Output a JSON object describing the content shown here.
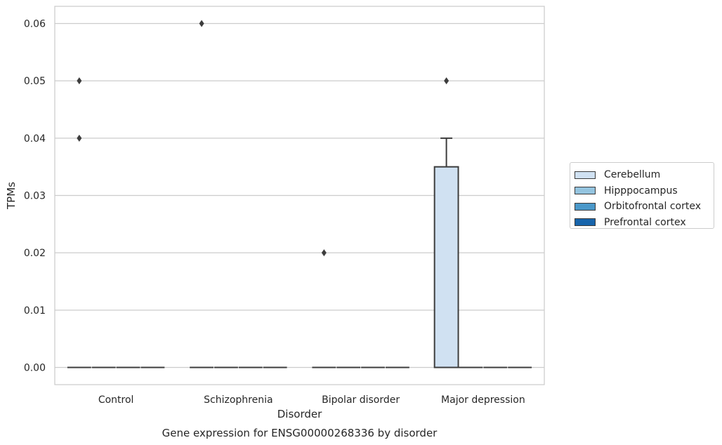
{
  "chart_data": {
    "type": "box",
    "xlabel": "Disorder",
    "ylabel": "TPMs",
    "caption": "Gene expression for ENSG00000268336 by disorder",
    "categories": [
      "Control",
      "Schizophrenia",
      "Bipolar disorder",
      "Major depression"
    ],
    "ylim": [
      -0.003,
      0.063
    ],
    "yticks": [
      "0.00",
      "0.01",
      "0.02",
      "0.03",
      "0.04",
      "0.05",
      "0.06"
    ],
    "grid": true,
    "legend_position": "right",
    "series": [
      {
        "name": "Cerebellum",
        "color": "#d0e1f2",
        "boxes": [
          {
            "q1": 0,
            "median": 0,
            "q3": 0,
            "whisker_low": 0,
            "whisker_high": 0,
            "outliers": [
              0.04,
              0.05
            ]
          },
          {
            "q1": 0,
            "median": 0,
            "q3": 0,
            "whisker_low": 0,
            "whisker_high": 0,
            "outliers": [
              0.06
            ]
          },
          {
            "q1": 0,
            "median": 0,
            "q3": 0,
            "whisker_low": 0,
            "whisker_high": 0,
            "outliers": [
              0.02
            ]
          },
          {
            "q1": 0,
            "median": 0,
            "q3": 0.035,
            "whisker_low": 0,
            "whisker_high": 0.04,
            "outliers": [
              0.05
            ]
          }
        ]
      },
      {
        "name": "Hipppocampus",
        "color": "#94c4df",
        "boxes": [
          {
            "q1": 0,
            "median": 0,
            "q3": 0,
            "whisker_low": 0,
            "whisker_high": 0,
            "outliers": []
          },
          {
            "q1": 0,
            "median": 0,
            "q3": 0,
            "whisker_low": 0,
            "whisker_high": 0,
            "outliers": []
          },
          {
            "q1": 0,
            "median": 0,
            "q3": 0,
            "whisker_low": 0,
            "whisker_high": 0,
            "outliers": []
          },
          {
            "q1": 0,
            "median": 0,
            "q3": 0,
            "whisker_low": 0,
            "whisker_high": 0,
            "outliers": []
          }
        ]
      },
      {
        "name": "Orbitofrontal cortex",
        "color": "#4a98c9",
        "boxes": [
          {
            "q1": 0,
            "median": 0,
            "q3": 0,
            "whisker_low": 0,
            "whisker_high": 0,
            "outliers": []
          },
          {
            "q1": 0,
            "median": 0,
            "q3": 0,
            "whisker_low": 0,
            "whisker_high": 0,
            "outliers": []
          },
          {
            "q1": 0,
            "median": 0,
            "q3": 0,
            "whisker_low": 0,
            "whisker_high": 0,
            "outliers": []
          },
          {
            "q1": 0,
            "median": 0,
            "q3": 0,
            "whisker_low": 0,
            "whisker_high": 0,
            "outliers": []
          }
        ]
      },
      {
        "name": "Prefrontal cortex",
        "color": "#1764ab",
        "boxes": [
          {
            "q1": 0,
            "median": 0,
            "q3": 0,
            "whisker_low": 0,
            "whisker_high": 0,
            "outliers": []
          },
          {
            "q1": 0,
            "median": 0,
            "q3": 0,
            "whisker_low": 0,
            "whisker_high": 0,
            "outliers": []
          },
          {
            "q1": 0,
            "median": 0,
            "q3": 0,
            "whisker_low": 0,
            "whisker_high": 0,
            "outliers": []
          },
          {
            "q1": 0,
            "median": 0,
            "q3": 0,
            "whisker_low": 0,
            "whisker_high": 0,
            "outliers": []
          }
        ]
      }
    ]
  }
}
